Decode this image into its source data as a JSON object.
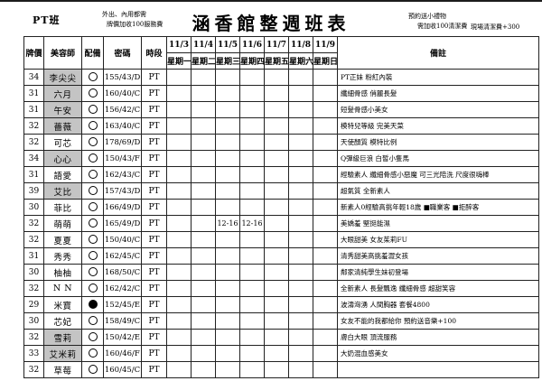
{
  "page": {
    "top_left_label": "PT班",
    "note_left_line1": "外出、內用都需",
    "note_left_line2": "牌價加收100服務費",
    "title": "涵香館整週班表",
    "note_right_line1": "預約送小禮物",
    "note_right_line2": "需加收100清潔費",
    "note_far_right": "現場清潔費+300"
  },
  "table": {
    "headers": {
      "price": "牌價",
      "artist": "美容師",
      "gear": "配備",
      "code": "密碼",
      "shift": "時段",
      "remark": "備註"
    },
    "dates": [
      {
        "date": "11/3",
        "day": "星期一"
      },
      {
        "date": "11/4",
        "day": "星期二"
      },
      {
        "date": "11/5",
        "day": "星期三"
      },
      {
        "date": "11/6",
        "day": "星期四"
      },
      {
        "date": "11/7",
        "day": "星期五"
      },
      {
        "date": "11/8",
        "day": "星期六"
      },
      {
        "date": "11/9",
        "day": "星期日"
      }
    ],
    "rows": [
      {
        "price": "34",
        "name": "李尖尖",
        "gray": true,
        "circle": "hollow",
        "code": "155/43/D",
        "shift": "PT",
        "days": [
          "",
          "",
          "",
          "",
          "",
          "",
          ""
        ],
        "remark": "PT正妹 粉紅內裝"
      },
      {
        "price": "31",
        "name": "六月",
        "gray": true,
        "circle": "hollow",
        "code": "160/40/C",
        "shift": "PT",
        "days": [
          "",
          "",
          "",
          "",
          "",
          "",
          ""
        ],
        "remark": "纖細骨感 俏麗長髮"
      },
      {
        "price": "31",
        "name": "午安",
        "gray": true,
        "circle": "hollow",
        "code": "156/42/C",
        "shift": "PT",
        "days": [
          "",
          "",
          "",
          "",
          "",
          "",
          ""
        ],
        "remark": "短髮骨感小美女"
      },
      {
        "price": "32",
        "name": "薔薇",
        "gray": true,
        "circle": "hollow",
        "code": "163/40/C",
        "shift": "PT",
        "days": [
          "",
          "",
          "",
          "",
          "",
          "",
          ""
        ],
        "remark": "模特兒等級 完美天菜"
      },
      {
        "price": "32",
        "name": "可芯",
        "gray": false,
        "circle": "hollow",
        "code": "178/69/D",
        "shift": "PT",
        "days": [
          "",
          "",
          "",
          "",
          "",
          "",
          ""
        ],
        "remark": "天使顏質 模特比例"
      },
      {
        "price": "34",
        "name": "心心",
        "gray": true,
        "circle": "hollow",
        "code": "150/43/F",
        "shift": "PT",
        "days": [
          "",
          "",
          "",
          "",
          "",
          "",
          ""
        ],
        "remark": "Q彈級巨浪 白皙小隻馬"
      },
      {
        "price": "31",
        "name": "語愛",
        "gray": false,
        "circle": "hollow",
        "code": "162/43/C",
        "shift": "PT",
        "days": [
          "",
          "",
          "",
          "",
          "",
          "",
          ""
        ],
        "remark": "經驗素人 纖細骨感小惡魔 可三光陪洗 尺度很嗨棒"
      },
      {
        "price": "39",
        "name": "艾比",
        "gray": true,
        "circle": "hollow",
        "code": "157/43/D",
        "shift": "PT",
        "days": [
          "",
          "",
          "",
          "",
          "",
          "",
          ""
        ],
        "remark": "超氣質 全新素人"
      },
      {
        "price": "30",
        "name": "菲比",
        "gray": false,
        "circle": "hollow",
        "code": "166/49/D",
        "shift": "PT",
        "days": [
          "",
          "",
          "",
          "",
          "",
          "",
          ""
        ],
        "remark": "新素人0經驗高挑年輕18歲 ■職業客 ■拒醉客"
      },
      {
        "price": "32",
        "name": "萌萌",
        "gray": false,
        "circle": "hollow",
        "code": "165/49/D",
        "shift": "PT",
        "days": [
          "",
          "",
          "12-16",
          "12-16",
          "",
          "",
          ""
        ],
        "remark": "美嬌羞 堅挺能濕"
      },
      {
        "price": "32",
        "name": "夏夏",
        "gray": false,
        "circle": "hollow",
        "code": "150/40/C",
        "shift": "PT",
        "days": [
          "",
          "",
          "",
          "",
          "",
          "",
          ""
        ],
        "remark": "大眼甜美 女友茱莉FU"
      },
      {
        "price": "31",
        "name": "秀秀",
        "gray": false,
        "circle": "hollow",
        "code": "162/45/C",
        "shift": "PT",
        "days": [
          "",
          "",
          "",
          "",
          "",
          "",
          ""
        ],
        "remark": "清秀甜美高挑羞澀女孩"
      },
      {
        "price": "30",
        "name": "柚柚",
        "gray": false,
        "circle": "hollow",
        "code": "168/50/C",
        "shift": "PT",
        "days": [
          "",
          "",
          "",
          "",
          "",
          "",
          ""
        ],
        "remark": "鄰家清純學生妹初登場"
      },
      {
        "price": "32",
        "name": "N N",
        "gray": false,
        "circle": "hollow",
        "code": "162/42/C",
        "shift": "PT",
        "days": [
          "",
          "",
          "",
          "",
          "",
          "",
          ""
        ],
        "remark": "全新素人 長髮飄逸 纖細骨感 超甜笑容"
      },
      {
        "price": "29",
        "name": "米寶",
        "gray": false,
        "circle": "filled",
        "code": "152/45/E",
        "shift": "PT",
        "days": [
          "",
          "",
          "",
          "",
          "",
          "",
          ""
        ],
        "remark": "波濤洶湧 人間胸器 套餐4800"
      },
      {
        "price": "30",
        "name": "芯妃",
        "gray": false,
        "circle": "hollow",
        "code": "158/49/C",
        "shift": "PT",
        "days": [
          "",
          "",
          "",
          "",
          "",
          "",
          ""
        ],
        "remark": "女友不能的我都給你 預約送音樂+100"
      },
      {
        "price": "32",
        "name": "雪莉",
        "gray": true,
        "circle": "hollow",
        "code": "150/42/E",
        "shift": "PT",
        "days": [
          "",
          "",
          "",
          "",
          "",
          "",
          ""
        ],
        "remark": "膚白大眼 頂流服務"
      },
      {
        "price": "33",
        "name": "艾米莉",
        "gray": true,
        "circle": "hollow",
        "code": "160/46/F",
        "shift": "PT",
        "days": [
          "",
          "",
          "",
          "",
          "",
          "",
          ""
        ],
        "remark": "大奶混血感美女"
      },
      {
        "price": "32",
        "name": "草莓",
        "gray": false,
        "circle": "hollow",
        "code": "160/45/C",
        "shift": "PT",
        "days": [
          "",
          "",
          "",
          "",
          "",
          "",
          ""
        ],
        "remark": ""
      }
    ]
  }
}
